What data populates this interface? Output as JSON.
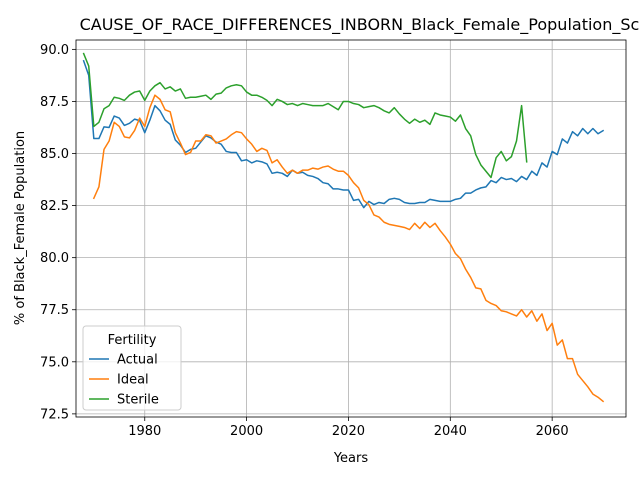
{
  "chart_data": {
    "type": "line",
    "title": "CAUSE_OF_RACE_DIFFERENCES_INBORN_Black_Female_Population_Scoring",
    "xlabel": "Years",
    "ylabel": "% of Black_Female Population",
    "xlim": [
      1966.5,
      2074.5
    ],
    "ylim": [
      72.35,
      90.45
    ],
    "xticks": [
      1980,
      2000,
      2020,
      2040,
      2060
    ],
    "yticks": [
      72.5,
      75.0,
      77.5,
      80.0,
      82.5,
      85.0,
      87.5,
      90.0
    ],
    "xtick_labels": [
      "1980",
      "2000",
      "2020",
      "2040",
      "2060"
    ],
    "ytick_labels": [
      "72.5",
      "75.0",
      "77.5",
      "80.0",
      "82.5",
      "85.0",
      "87.5",
      "90.0"
    ],
    "grid": true,
    "legend": {
      "title": "Fertility",
      "position": "lower-left"
    },
    "series": [
      {
        "name": "Actual",
        "color": "#1f77b4",
        "x": [
          1968,
          1969,
          1970,
          1971,
          1972,
          1973,
          1974,
          1975,
          1976,
          1977,
          1978,
          1979,
          1980,
          1981,
          1982,
          1983,
          1984,
          1985,
          1986,
          1987,
          1988,
          1989,
          1990,
          1991,
          1992,
          1993,
          1994,
          1995,
          1996,
          1997,
          1998,
          1999,
          2000,
          2001,
          2002,
          2003,
          2004,
          2005,
          2006,
          2007,
          2008,
          2009,
          2010,
          2011,
          2012,
          2013,
          2014,
          2015,
          2016,
          2017,
          2018,
          2019,
          2020,
          2021,
          2022,
          2023,
          2024,
          2025,
          2026,
          2027,
          2028,
          2029,
          2030,
          2031,
          2032,
          2033,
          2034,
          2035,
          2036,
          2037,
          2038,
          2039,
          2040,
          2041,
          2042,
          2043,
          2044,
          2045,
          2046,
          2047,
          2048,
          2049,
          2050,
          2051,
          2052,
          2053,
          2054,
          2055,
          2056,
          2057,
          2058,
          2059,
          2060,
          2061,
          2062,
          2063,
          2064,
          2065,
          2066,
          2067,
          2068,
          2069,
          2070
        ],
        "y": [
          89.45,
          88.75,
          85.72,
          85.72,
          86.28,
          86.25,
          86.8,
          86.7,
          86.35,
          86.45,
          86.65,
          86.58,
          86.0,
          86.6,
          87.3,
          87.05,
          86.6,
          86.4,
          85.65,
          85.4,
          85.05,
          85.2,
          85.25,
          85.55,
          85.85,
          85.75,
          85.55,
          85.45,
          85.1,
          85.05,
          85.05,
          84.65,
          84.7,
          84.55,
          84.65,
          84.6,
          84.5,
          84.05,
          84.1,
          84.05,
          83.9,
          84.2,
          84.05,
          84.1,
          83.95,
          83.9,
          83.8,
          83.6,
          83.55,
          83.3,
          83.3,
          83.25,
          83.25,
          82.75,
          82.8,
          82.4,
          82.7,
          82.55,
          82.65,
          82.6,
          82.8,
          82.85,
          82.8,
          82.65,
          82.6,
          82.6,
          82.65,
          82.65,
          82.8,
          82.75,
          82.7,
          82.7,
          82.7,
          82.8,
          82.85,
          83.1,
          83.1,
          83.25,
          83.35,
          83.4,
          83.7,
          83.6,
          83.85,
          83.75,
          83.8,
          83.65,
          83.9,
          83.75,
          84.15,
          83.95,
          84.55,
          84.35,
          85.1,
          84.95,
          85.7,
          85.5,
          86.05,
          85.85,
          86.2,
          85.95,
          86.2,
          85.95,
          86.1
        ]
      },
      {
        "name": "Ideal",
        "color": "#ff7f0e",
        "x": [
          1970,
          1971,
          1972,
          1973,
          1974,
          1975,
          1976,
          1977,
          1978,
          1979,
          1980,
          1981,
          1982,
          1983,
          1984,
          1985,
          1986,
          1987,
          1988,
          1989,
          1990,
          1991,
          1992,
          1993,
          1994,
          1995,
          1996,
          1997,
          1998,
          1999,
          2000,
          2001,
          2002,
          2003,
          2004,
          2005,
          2006,
          2007,
          2008,
          2009,
          2010,
          2011,
          2012,
          2013,
          2014,
          2015,
          2016,
          2017,
          2018,
          2019,
          2020,
          2021,
          2022,
          2023,
          2024,
          2025,
          2026,
          2027,
          2028,
          2029,
          2030,
          2031,
          2032,
          2033,
          2034,
          2035,
          2036,
          2037,
          2038,
          2039,
          2040,
          2041,
          2042,
          2043,
          2044,
          2045,
          2046,
          2047,
          2048,
          2049,
          2050,
          2051,
          2052,
          2053,
          2054,
          2055,
          2056,
          2057,
          2058,
          2059,
          2060,
          2061,
          2062,
          2063,
          2064,
          2065,
          2066,
          2067,
          2068,
          2069,
          2070
        ],
        "y": [
          82.85,
          83.4,
          85.2,
          85.6,
          86.5,
          86.3,
          85.8,
          85.75,
          86.1,
          86.7,
          86.3,
          87.2,
          87.8,
          87.6,
          87.1,
          87.0,
          86.0,
          85.5,
          84.95,
          85.05,
          85.6,
          85.6,
          85.9,
          85.85,
          85.5,
          85.6,
          85.7,
          85.9,
          86.05,
          86.0,
          85.7,
          85.45,
          85.1,
          85.25,
          85.15,
          84.55,
          84.7,
          84.35,
          84.05,
          84.2,
          84.05,
          84.2,
          84.2,
          84.3,
          84.25,
          84.35,
          84.4,
          84.25,
          84.15,
          84.15,
          83.95,
          83.6,
          83.35,
          82.75,
          82.55,
          82.05,
          81.95,
          81.7,
          81.6,
          81.55,
          81.5,
          81.45,
          81.35,
          81.65,
          81.4,
          81.7,
          81.45,
          81.65,
          81.3,
          81.0,
          80.65,
          80.2,
          79.95,
          79.45,
          79.05,
          78.55,
          78.5,
          77.95,
          77.8,
          77.7,
          77.45,
          77.4,
          77.3,
          77.2,
          77.5,
          77.15,
          77.45,
          76.95,
          77.3,
          76.5,
          76.85,
          75.8,
          76.05,
          75.15,
          75.15,
          74.4,
          74.1,
          73.8,
          73.45,
          73.3,
          73.1
        ]
      },
      {
        "name": "Sterile",
        "color": "#2ca02c",
        "x": [
          1968,
          1969,
          1970,
          1971,
          1972,
          1973,
          1974,
          1975,
          1976,
          1977,
          1978,
          1979,
          1980,
          1981,
          1982,
          1983,
          1984,
          1985,
          1986,
          1987,
          1988,
          1989,
          1990,
          1991,
          1992,
          1993,
          1994,
          1995,
          1996,
          1997,
          1998,
          1999,
          2000,
          2001,
          2002,
          2003,
          2004,
          2005,
          2006,
          2007,
          2008,
          2009,
          2010,
          2011,
          2012,
          2013,
          2014,
          2015,
          2016,
          2017,
          2018,
          2019,
          2020,
          2021,
          2022,
          2023,
          2024,
          2025,
          2026,
          2027,
          2028,
          2029,
          2030,
          2031,
          2032,
          2033,
          2034,
          2035,
          2036,
          2037,
          2038,
          2039,
          2040,
          2041,
          2042,
          2043,
          2044,
          2045,
          2046,
          2047,
          2048,
          2049,
          2050,
          2051,
          2052,
          2053,
          2054,
          2055
        ],
        "y": [
          89.8,
          89.2,
          86.3,
          86.5,
          87.15,
          87.3,
          87.7,
          87.65,
          87.55,
          87.8,
          87.95,
          88.0,
          87.55,
          88.0,
          88.25,
          88.4,
          88.1,
          88.2,
          88.0,
          88.1,
          87.65,
          87.7,
          87.7,
          87.75,
          87.8,
          87.6,
          87.85,
          87.9,
          88.15,
          88.25,
          88.3,
          88.25,
          87.95,
          87.8,
          87.8,
          87.7,
          87.55,
          87.3,
          87.6,
          87.5,
          87.35,
          87.4,
          87.3,
          87.4,
          87.35,
          87.3,
          87.3,
          87.3,
          87.4,
          87.25,
          87.1,
          87.5,
          87.5,
          87.4,
          87.35,
          87.2,
          87.25,
          87.3,
          87.2,
          87.05,
          86.95,
          87.2,
          86.9,
          86.65,
          86.45,
          86.65,
          86.5,
          86.6,
          86.4,
          86.95,
          86.85,
          86.8,
          86.75,
          86.55,
          86.85,
          86.2,
          85.85,
          84.95,
          84.45,
          84.15,
          83.85,
          84.8,
          85.1,
          84.65,
          84.85,
          85.6,
          87.3,
          84.6
        ]
      }
    ]
  }
}
